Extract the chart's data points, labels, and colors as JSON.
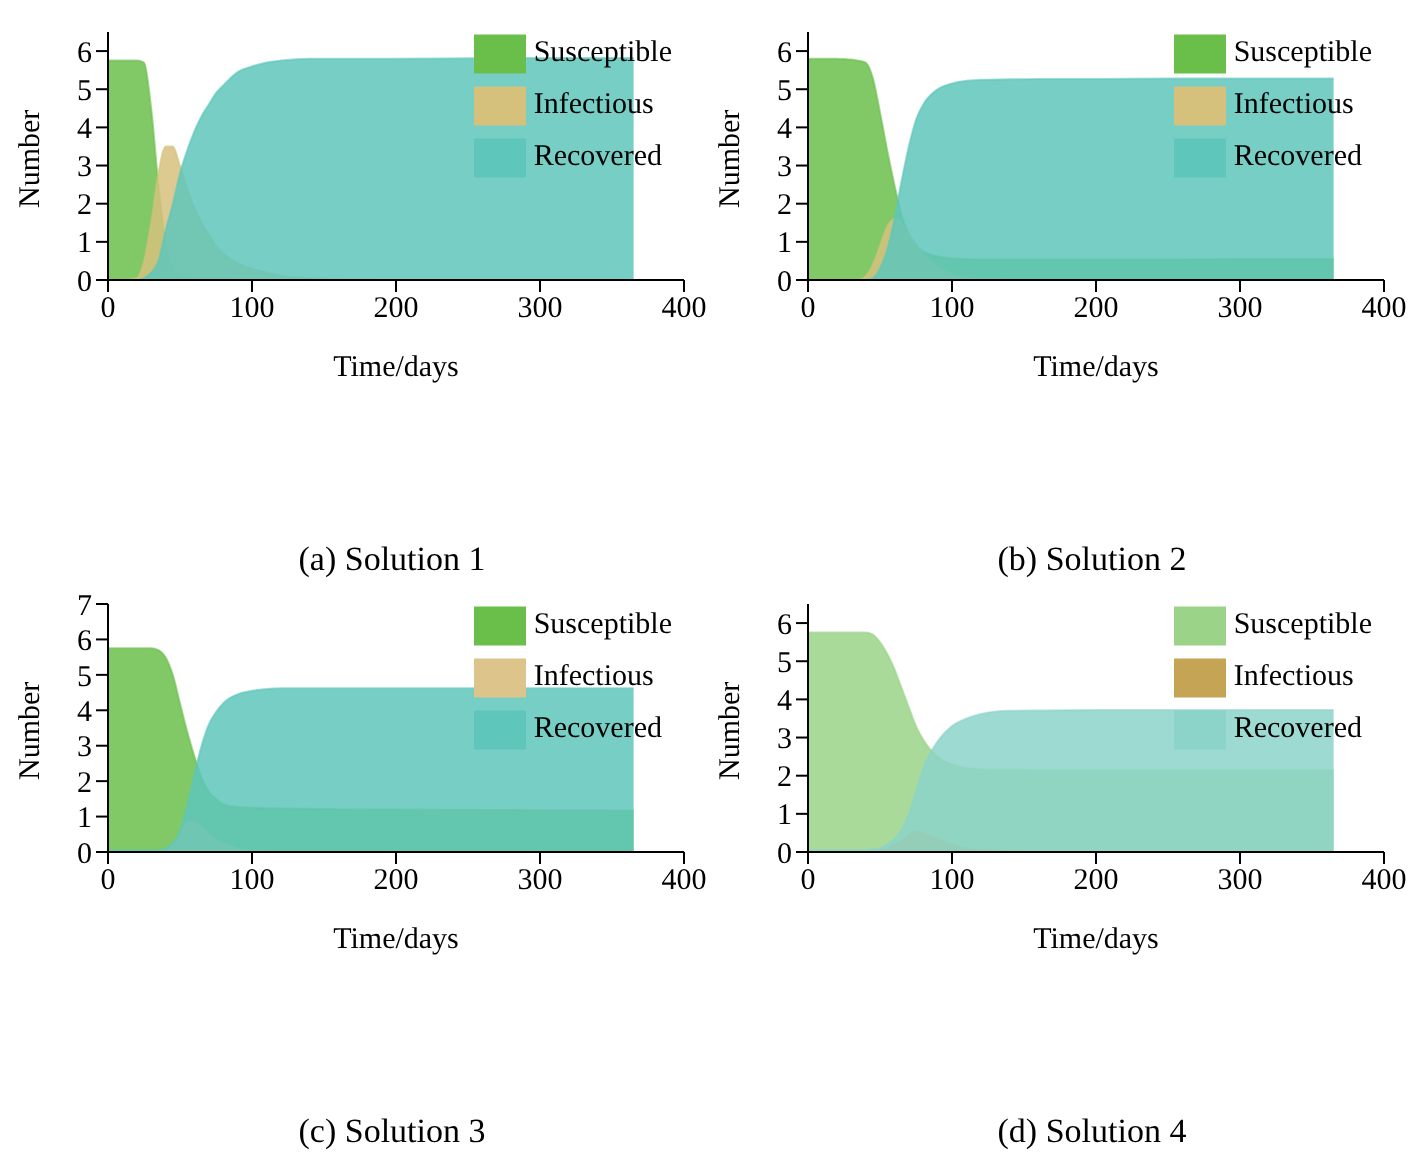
{
  "chart_data": [
    {
      "type": "area",
      "title": "(a) Solution 1",
      "xlabel": "Time/days",
      "ylabel": "Number",
      "legend": "top right",
      "xlim": [
        0,
        400
      ],
      "xticks": [
        0,
        100,
        200,
        300,
        400
      ],
      "ylim": [
        0,
        6.5
      ],
      "yticks": [
        0,
        1,
        2,
        3,
        4,
        5,
        6
      ],
      "x": [
        0,
        10,
        20,
        25,
        30,
        35,
        40,
        45,
        50,
        55,
        60,
        65,
        70,
        75,
        80,
        90,
        100,
        110,
        120,
        140,
        160,
        200,
        250,
        300,
        365
      ],
      "series": [
        {
          "name": "Susceptible",
          "color": "#6abf4b",
          "values": [
            5.75,
            5.75,
            5.75,
            5.7,
            4.5,
            2.5,
            1.0,
            0.3,
            0.1,
            0.05,
            0.03,
            0.02,
            0.02,
            0.01,
            0.01,
            0,
            0,
            0,
            0,
            0,
            0,
            0,
            0,
            0,
            0
          ]
        },
        {
          "name": "Infectious",
          "color": "#d6c17c",
          "values": [
            0,
            0,
            0.05,
            0.5,
            1.5,
            2.8,
            3.5,
            3.5,
            3.0,
            2.4,
            1.9,
            1.5,
            1.2,
            0.9,
            0.7,
            0.45,
            0.3,
            0.2,
            0.12,
            0.05,
            0.02,
            0,
            0,
            0,
            0
          ]
        },
        {
          "name": "Recovered",
          "color": "#5ec6bb",
          "values": [
            0,
            0,
            0,
            0.05,
            0.2,
            0.5,
            1.3,
            2.0,
            2.8,
            3.4,
            3.9,
            4.3,
            4.6,
            4.9,
            5.1,
            5.45,
            5.6,
            5.7,
            5.75,
            5.8,
            5.8,
            5.8,
            5.81,
            5.82,
            5.82
          ]
        }
      ]
    },
    {
      "type": "area",
      "title": "(b) Solution 2",
      "xlabel": "Time/days",
      "ylabel": "Number",
      "legend": "top right",
      "xlim": [
        0,
        400
      ],
      "xticks": [
        0,
        100,
        200,
        300,
        400
      ],
      "ylim": [
        0,
        6.5
      ],
      "yticks": [
        0,
        1,
        2,
        3,
        4,
        5,
        6
      ],
      "x": [
        0,
        10,
        20,
        25,
        30,
        35,
        40,
        45,
        50,
        55,
        60,
        65,
        70,
        75,
        80,
        90,
        100,
        110,
        120,
        140,
        160,
        200,
        250,
        300,
        365
      ],
      "series": [
        {
          "name": "Susceptible",
          "color": "#6abf4b",
          "values": [
            5.8,
            5.8,
            5.8,
            5.79,
            5.78,
            5.75,
            5.7,
            5.3,
            4.4,
            3.4,
            2.5,
            1.7,
            1.2,
            0.9,
            0.75,
            0.62,
            0.57,
            0.55,
            0.54,
            0.54,
            0.54,
            0.54,
            0.54,
            0.55,
            0.55
          ]
        },
        {
          "name": "Infectious",
          "color": "#d6c17c",
          "values": [
            0,
            0,
            0,
            0,
            0,
            0,
            0.1,
            0.4,
            0.9,
            1.4,
            1.6,
            1.5,
            1.2,
            0.95,
            0.7,
            0.35,
            0.15,
            0.05,
            0.02,
            0,
            0,
            0,
            0,
            0,
            0
          ]
        },
        {
          "name": "Recovered",
          "color": "#5ec6bb",
          "values": [
            0,
            0,
            0,
            0,
            0,
            0,
            0,
            0.05,
            0.3,
            0.8,
            1.6,
            2.6,
            3.5,
            4.2,
            4.6,
            5.0,
            5.15,
            5.22,
            5.25,
            5.26,
            5.27,
            5.27,
            5.28,
            5.28,
            5.28
          ]
        }
      ]
    },
    {
      "type": "area",
      "title": "(c) Solution 3",
      "xlabel": "Time/days",
      "ylabel": "Number",
      "legend": "top right",
      "xlim": [
        0,
        400
      ],
      "xticks": [
        0,
        100,
        200,
        300,
        400
      ],
      "ylim": [
        0,
        7
      ],
      "yticks": [
        0,
        1,
        2,
        3,
        4,
        5,
        6,
        7
      ],
      "x": [
        0,
        10,
        20,
        25,
        30,
        35,
        40,
        45,
        50,
        55,
        60,
        65,
        70,
        75,
        80,
        90,
        100,
        110,
        120,
        140,
        160,
        200,
        250,
        300,
        365
      ],
      "series": [
        {
          "name": "Susceptible",
          "color": "#6abf4b",
          "values": [
            5.75,
            5.75,
            5.75,
            5.75,
            5.75,
            5.7,
            5.5,
            5.0,
            4.2,
            3.4,
            2.7,
            2.1,
            1.7,
            1.5,
            1.35,
            1.27,
            1.25,
            1.24,
            1.23,
            1.22,
            1.21,
            1.2,
            1.19,
            1.18,
            1.17
          ]
        },
        {
          "name": "Infectious",
          "color": "#dcc48a",
          "values": [
            0,
            0,
            0,
            0,
            0,
            0.02,
            0.05,
            0.2,
            0.5,
            0.85,
            0.88,
            0.7,
            0.5,
            0.35,
            0.25,
            0.1,
            0.03,
            0.01,
            0,
            0,
            0,
            0,
            0,
            0,
            0
          ]
        },
        {
          "name": "Recovered",
          "color": "#5ec6bb",
          "values": [
            0.05,
            0.05,
            0.05,
            0.05,
            0.05,
            0.05,
            0.1,
            0.25,
            0.6,
            1.3,
            2.2,
            3.0,
            3.6,
            3.95,
            4.2,
            4.45,
            4.55,
            4.6,
            4.62,
            4.62,
            4.62,
            4.62,
            4.62,
            4.62,
            4.62
          ]
        }
      ]
    },
    {
      "type": "area",
      "title": "(d) Solution 4",
      "xlabel": "Time/days",
      "ylabel": "Number",
      "legend": "top right",
      "xlim": [
        0,
        400
      ],
      "xticks": [
        0,
        100,
        200,
        300,
        400
      ],
      "ylim": [
        0,
        6.5
      ],
      "yticks": [
        0,
        1,
        2,
        3,
        4,
        5,
        6
      ],
      "x": [
        0,
        10,
        20,
        25,
        30,
        35,
        40,
        45,
        50,
        55,
        60,
        65,
        70,
        75,
        80,
        90,
        100,
        110,
        120,
        140,
        160,
        200,
        250,
        300,
        365
      ],
      "series": [
        {
          "name": "Susceptible",
          "color": "#9bd488",
          "values": [
            5.75,
            5.75,
            5.75,
            5.75,
            5.75,
            5.75,
            5.75,
            5.7,
            5.5,
            5.2,
            4.8,
            4.3,
            3.8,
            3.3,
            2.95,
            2.5,
            2.3,
            2.2,
            2.17,
            2.16,
            2.15,
            2.15,
            2.15,
            2.15,
            2.15
          ]
        },
        {
          "name": "Infectious",
          "color": "#c6a455",
          "values": [
            0,
            0,
            0,
            0,
            0,
            0,
            0.02,
            0.03,
            0.05,
            0.1,
            0.2,
            0.3,
            0.45,
            0.53,
            0.5,
            0.35,
            0.2,
            0.1,
            0.05,
            0.02,
            0,
            0,
            0,
            0,
            0
          ]
        },
        {
          "name": "Recovered",
          "color": "#8cd3c9",
          "values": [
            0.05,
            0.05,
            0.05,
            0.05,
            0.05,
            0.05,
            0.05,
            0.07,
            0.1,
            0.2,
            0.35,
            0.6,
            1.0,
            1.6,
            2.2,
            2.9,
            3.3,
            3.5,
            3.62,
            3.7,
            3.71,
            3.72,
            3.72,
            3.72,
            3.72
          ]
        }
      ]
    }
  ]
}
